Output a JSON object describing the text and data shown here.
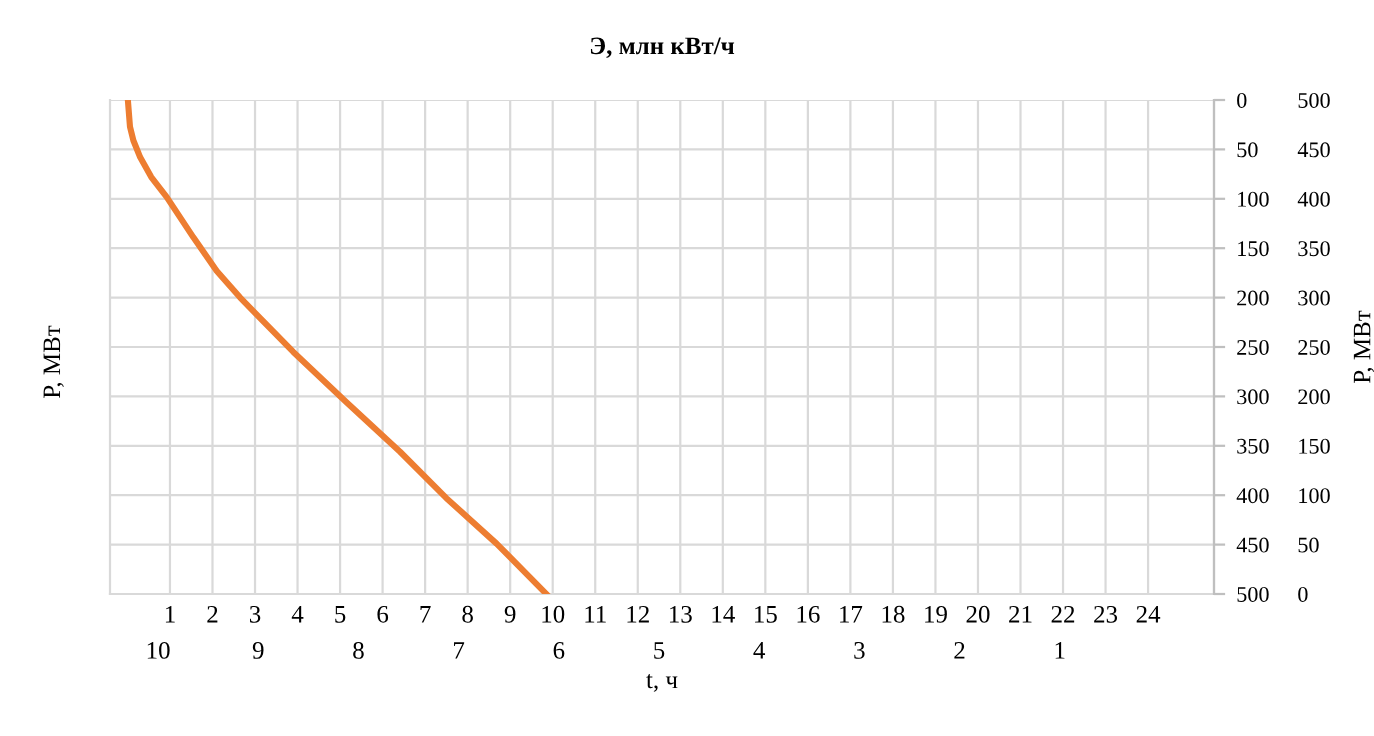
{
  "chart_data": {
    "type": "line",
    "title": "Э, млн кВт/ч",
    "xlabel": "t, ч",
    "ylabel": "P, МВт",
    "annotations": [
      "P, МВт"
    ],
    "xlim": [
      -0.41,
      25.55
    ],
    "xticks": [
      1,
      2,
      3,
      4,
      5,
      6,
      7,
      8,
      9,
      10,
      11,
      12,
      13,
      14,
      15,
      16,
      17,
      18,
      19,
      20,
      21,
      22,
      23,
      24
    ],
    "x2lim": [
      10.48,
      -0.54
    ],
    "x2ticks": [
      10,
      9,
      8,
      7,
      6,
      5,
      4,
      3,
      2,
      1
    ],
    "ylim": [
      0,
      500
    ],
    "yticks": [
      0,
      50,
      100,
      150,
      200,
      250,
      300,
      350,
      400,
      450,
      500
    ],
    "y2lim": [
      500,
      0
    ],
    "y2ticks": [
      0,
      50,
      100,
      150,
      200,
      250,
      300,
      350,
      400,
      450,
      500
    ],
    "grid": true,
    "marker": "none",
    "line_style": "solid",
    "series": [
      {
        "color": "#ed7d31",
        "x": [
          0.01,
          0.06,
          0.14,
          0.3,
          0.56,
          0.92,
          1.55,
          2.1,
          2.65,
          3.9,
          5.15,
          6.41,
          7.5,
          8.68,
          9.85
        ],
        "values": [
          500,
          473,
          459,
          442,
          422,
          402,
          361,
          327,
          300,
          245,
          194,
          144,
          97,
          51,
          0
        ]
      }
    ]
  }
}
